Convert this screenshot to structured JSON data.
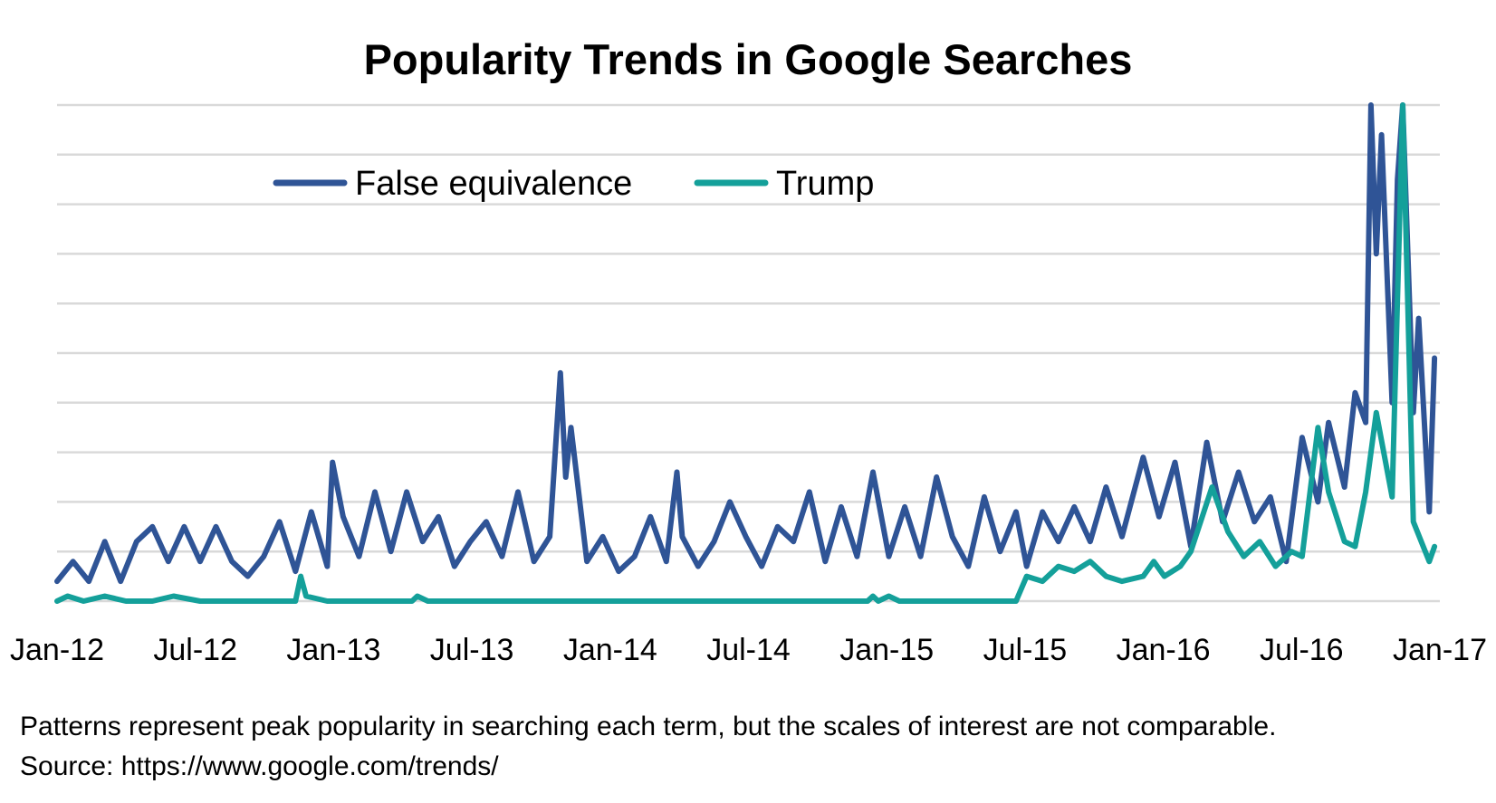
{
  "chart_data": {
    "type": "line",
    "title": "Popularity Trends in Google Searches",
    "xlabel": "",
    "ylabel": "",
    "x_tick_labels": [
      "Jan-12",
      "Jul-12",
      "Jan-13",
      "Jul-13",
      "Jan-14",
      "Jul-14",
      "Jan-15",
      "Jul-15",
      "Jan-16",
      "Jul-16",
      "Jan-17"
    ],
    "x_range": [
      "2012-01-01",
      "2017-01-01"
    ],
    "y_range": [
      0,
      100
    ],
    "grid": true,
    "legend_position": "top-left",
    "series": [
      {
        "name": "False equivalence",
        "color": "#2F5496",
        "points": [
          [
            "2012-01-01",
            4
          ],
          [
            "2012-01-22",
            8
          ],
          [
            "2012-02-12",
            4
          ],
          [
            "2012-03-04",
            12
          ],
          [
            "2012-03-25",
            4
          ],
          [
            "2012-04-15",
            12
          ],
          [
            "2012-05-06",
            15
          ],
          [
            "2012-05-27",
            8
          ],
          [
            "2012-06-17",
            15
          ],
          [
            "2012-07-08",
            8
          ],
          [
            "2012-07-29",
            15
          ],
          [
            "2012-08-19",
            8
          ],
          [
            "2012-09-09",
            5
          ],
          [
            "2012-09-30",
            9
          ],
          [
            "2012-10-21",
            16
          ],
          [
            "2012-11-11",
            6
          ],
          [
            "2012-12-02",
            18
          ],
          [
            "2012-12-23",
            7
          ],
          [
            "2012-12-30",
            28
          ],
          [
            "2013-01-13",
            17
          ],
          [
            "2013-02-03",
            9
          ],
          [
            "2013-02-24",
            22
          ],
          [
            "2013-03-17",
            10
          ],
          [
            "2013-04-07",
            22
          ],
          [
            "2013-04-28",
            12
          ],
          [
            "2013-05-19",
            17
          ],
          [
            "2013-06-09",
            7
          ],
          [
            "2013-06-30",
            12
          ],
          [
            "2013-07-21",
            16
          ],
          [
            "2013-08-11",
            9
          ],
          [
            "2013-09-01",
            22
          ],
          [
            "2013-09-22",
            8
          ],
          [
            "2013-10-13",
            13
          ],
          [
            "2013-10-27",
            46
          ],
          [
            "2013-11-03",
            25
          ],
          [
            "2013-11-10",
            35
          ],
          [
            "2013-12-01",
            8
          ],
          [
            "2013-12-22",
            13
          ],
          [
            "2014-01-12",
            6
          ],
          [
            "2014-02-02",
            9
          ],
          [
            "2014-02-23",
            17
          ],
          [
            "2014-03-16",
            8
          ],
          [
            "2014-03-30",
            26
          ],
          [
            "2014-04-06",
            13
          ],
          [
            "2014-04-27",
            7
          ],
          [
            "2014-05-18",
            12
          ],
          [
            "2014-06-08",
            20
          ],
          [
            "2014-06-29",
            13
          ],
          [
            "2014-07-20",
            7
          ],
          [
            "2014-08-10",
            15
          ],
          [
            "2014-08-31",
            12
          ],
          [
            "2014-09-21",
            22
          ],
          [
            "2014-10-12",
            8
          ],
          [
            "2014-11-02",
            19
          ],
          [
            "2014-11-23",
            9
          ],
          [
            "2014-12-14",
            26
          ],
          [
            "2015-01-04",
            9
          ],
          [
            "2015-01-25",
            19
          ],
          [
            "2015-02-15",
            9
          ],
          [
            "2015-03-08",
            25
          ],
          [
            "2015-03-29",
            13
          ],
          [
            "2015-04-19",
            7
          ],
          [
            "2015-05-10",
            21
          ],
          [
            "2015-05-31",
            10
          ],
          [
            "2015-06-21",
            18
          ],
          [
            "2015-07-05",
            7
          ],
          [
            "2015-07-26",
            18
          ],
          [
            "2015-08-16",
            12
          ],
          [
            "2015-09-06",
            19
          ],
          [
            "2015-09-27",
            12
          ],
          [
            "2015-10-18",
            23
          ],
          [
            "2015-11-08",
            13
          ],
          [
            "2015-12-06",
            29
          ],
          [
            "2015-12-27",
            17
          ],
          [
            "2016-01-17",
            28
          ],
          [
            "2016-02-07",
            11
          ],
          [
            "2016-02-28",
            32
          ],
          [
            "2016-03-20",
            16
          ],
          [
            "2016-04-10",
            26
          ],
          [
            "2016-05-01",
            16
          ],
          [
            "2016-05-22",
            21
          ],
          [
            "2016-06-12",
            8
          ],
          [
            "2016-07-03",
            33
          ],
          [
            "2016-07-24",
            20
          ],
          [
            "2016-08-07",
            36
          ],
          [
            "2016-08-28",
            23
          ],
          [
            "2016-09-11",
            42
          ],
          [
            "2016-09-25",
            36
          ],
          [
            "2016-10-02",
            100
          ],
          [
            "2016-10-09",
            70
          ],
          [
            "2016-10-16",
            94
          ],
          [
            "2016-10-30",
            40
          ],
          [
            "2016-11-06",
            85
          ],
          [
            "2016-11-13",
            100
          ],
          [
            "2016-11-27",
            38
          ],
          [
            "2016-12-04",
            57
          ],
          [
            "2016-12-18",
            18
          ],
          [
            "2016-12-25",
            49
          ]
        ]
      },
      {
        "name": "Trump",
        "color": "#14A09A",
        "points": [
          [
            "2012-01-01",
            0
          ],
          [
            "2012-01-15",
            1
          ],
          [
            "2012-02-05",
            0
          ],
          [
            "2012-03-04",
            1
          ],
          [
            "2012-04-01",
            0
          ],
          [
            "2012-05-06",
            0
          ],
          [
            "2012-06-03",
            1
          ],
          [
            "2012-07-08",
            0
          ],
          [
            "2012-08-12",
            0
          ],
          [
            "2012-09-16",
            0
          ],
          [
            "2012-10-21",
            0
          ],
          [
            "2012-11-11",
            0
          ],
          [
            "2012-11-18",
            5
          ],
          [
            "2012-11-25",
            1
          ],
          [
            "2012-12-23",
            0
          ],
          [
            "2013-02-10",
            0
          ],
          [
            "2013-04-14",
            0
          ],
          [
            "2013-04-21",
            1
          ],
          [
            "2013-05-05",
            0
          ],
          [
            "2013-08-04",
            0
          ],
          [
            "2013-11-10",
            0
          ],
          [
            "2014-02-16",
            0
          ],
          [
            "2014-06-01",
            0
          ],
          [
            "2014-09-28",
            0
          ],
          [
            "2014-12-07",
            0
          ],
          [
            "2014-12-14",
            1
          ],
          [
            "2014-12-21",
            0
          ],
          [
            "2015-01-04",
            1
          ],
          [
            "2015-01-18",
            0
          ],
          [
            "2015-03-15",
            0
          ],
          [
            "2015-06-07",
            0
          ],
          [
            "2015-06-21",
            0
          ],
          [
            "2015-07-05",
            5
          ],
          [
            "2015-07-26",
            4
          ],
          [
            "2015-08-16",
            7
          ],
          [
            "2015-09-06",
            6
          ],
          [
            "2015-09-27",
            8
          ],
          [
            "2015-10-18",
            5
          ],
          [
            "2015-11-08",
            4
          ],
          [
            "2015-12-06",
            5
          ],
          [
            "2015-12-20",
            8
          ],
          [
            "2016-01-03",
            5
          ],
          [
            "2016-01-24",
            7
          ],
          [
            "2016-02-07",
            10
          ],
          [
            "2016-03-06",
            23
          ],
          [
            "2016-03-27",
            14
          ],
          [
            "2016-04-17",
            9
          ],
          [
            "2016-05-08",
            12
          ],
          [
            "2016-05-29",
            7
          ],
          [
            "2016-06-19",
            10
          ],
          [
            "2016-07-03",
            9
          ],
          [
            "2016-07-24",
            35
          ],
          [
            "2016-08-07",
            22
          ],
          [
            "2016-08-28",
            12
          ],
          [
            "2016-09-11",
            11
          ],
          [
            "2016-09-25",
            22
          ],
          [
            "2016-10-09",
            38
          ],
          [
            "2016-10-30",
            21
          ],
          [
            "2016-11-13",
            100
          ],
          [
            "2016-11-27",
            16
          ],
          [
            "2016-12-18",
            8
          ],
          [
            "2016-12-25",
            11
          ]
        ]
      }
    ]
  },
  "footnote": {
    "note": "Patterns represent peak popularity in searching each term, but the scales of interest are not comparable.",
    "source": "Source: https://www.google.com/trends/"
  }
}
